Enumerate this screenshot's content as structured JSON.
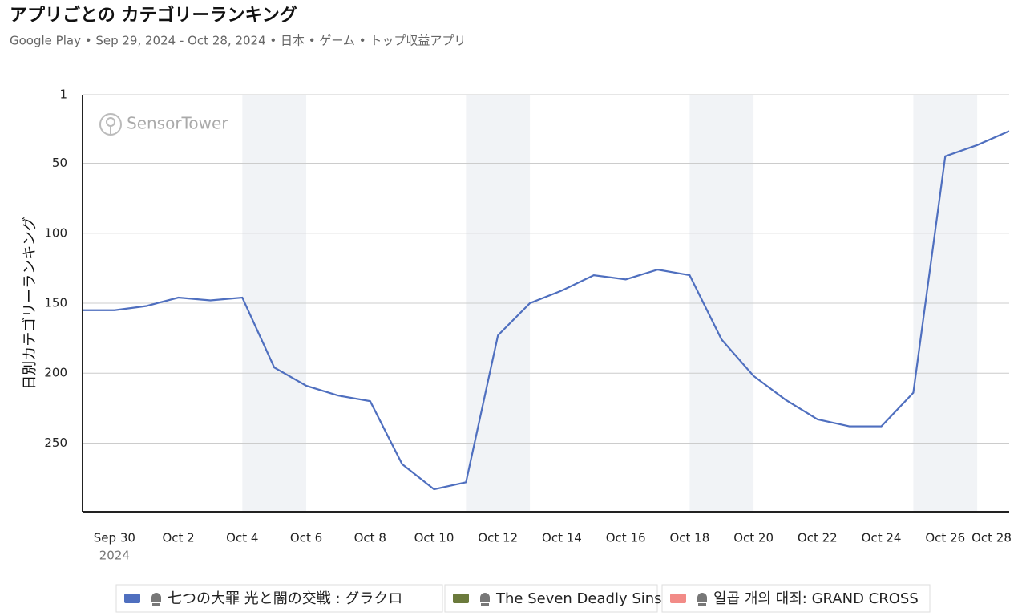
{
  "chart_data": {
    "type": "line",
    "title": "アプリごとの カテゴリーランキング",
    "subtitle": "Google Play • Sep 29, 2024 - Oct 28, 2024 • 日本 • ゲーム • トップ収益アプリ",
    "y_axis_label": "日別カテゴリーランキング",
    "watermark": "SensorTower",
    "categories": [
      null,
      "Sep 30",
      null,
      "Oct 2",
      null,
      "Oct 4",
      null,
      "Oct 6",
      null,
      "Oct 8",
      null,
      "Oct 10",
      null,
      "Oct 12",
      null,
      "Oct 14",
      null,
      "Oct 16",
      null,
      "Oct 18",
      null,
      "Oct 20",
      null,
      "Oct 22",
      null,
      "Oct 24",
      null,
      "Oct 26",
      null,
      "Oct 28"
    ],
    "x_year_label": "2024",
    "series": [
      {
        "name": "七つの大罪 光と闇の交戦 : グラクロ",
        "color": "#4f6fbf",
        "values": [
          155,
          155,
          152,
          146,
          148,
          146,
          196,
          209,
          216,
          220,
          265,
          283,
          278,
          173,
          150,
          141,
          130,
          133,
          126,
          130,
          176,
          202,
          219,
          233,
          238,
          238,
          214,
          45,
          37,
          27
        ]
      },
      {
        "name": "The Seven Deadly Sins",
        "color": "#6b7a3c",
        "values": [
          null,
          null,
          null,
          null,
          null,
          null,
          null,
          null,
          null,
          null,
          null,
          null,
          null,
          null,
          null,
          null,
          null,
          null,
          null,
          null,
          null,
          null,
          null,
          null,
          null,
          null,
          null,
          null,
          null,
          null
        ]
      },
      {
        "name": "일곱 개의 대죄: GRAND CROSS",
        "color": "#f28b87",
        "values": [
          null,
          null,
          null,
          null,
          null,
          null,
          null,
          null,
          null,
          null,
          null,
          null,
          null,
          null,
          null,
          null,
          null,
          null,
          null,
          null,
          null,
          null,
          null,
          null,
          null,
          null,
          null,
          null,
          null,
          null
        ]
      }
    ],
    "ylim": [
      1,
      299
    ],
    "y_inverted": true,
    "yticks": [
      1,
      50,
      100,
      150,
      200,
      250
    ],
    "grid": true
  }
}
